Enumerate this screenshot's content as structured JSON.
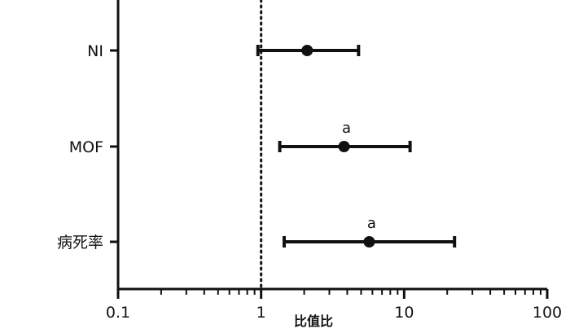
{
  "chart_data": {
    "type": "scatter",
    "subtype": "forest-plot",
    "x_scale": "log",
    "xlim": [
      0.1,
      100
    ],
    "xticks": [
      0.1,
      1,
      10,
      100
    ],
    "xtick_labels": [
      "0.1",
      "1",
      "10",
      "100"
    ],
    "xlabel": "比值比",
    "reference_line": 1,
    "reference_line_style": "dotted",
    "grid": false,
    "categories": [
      "NI",
      "MOF",
      "病死率"
    ],
    "estimate": [
      2.1,
      3.8,
      5.7
    ],
    "ci_lower": [
      0.95,
      1.35,
      1.45
    ],
    "ci_upper": [
      4.8,
      11.0,
      22.5
    ],
    "annotations": [
      "",
      "a",
      "a"
    ]
  }
}
